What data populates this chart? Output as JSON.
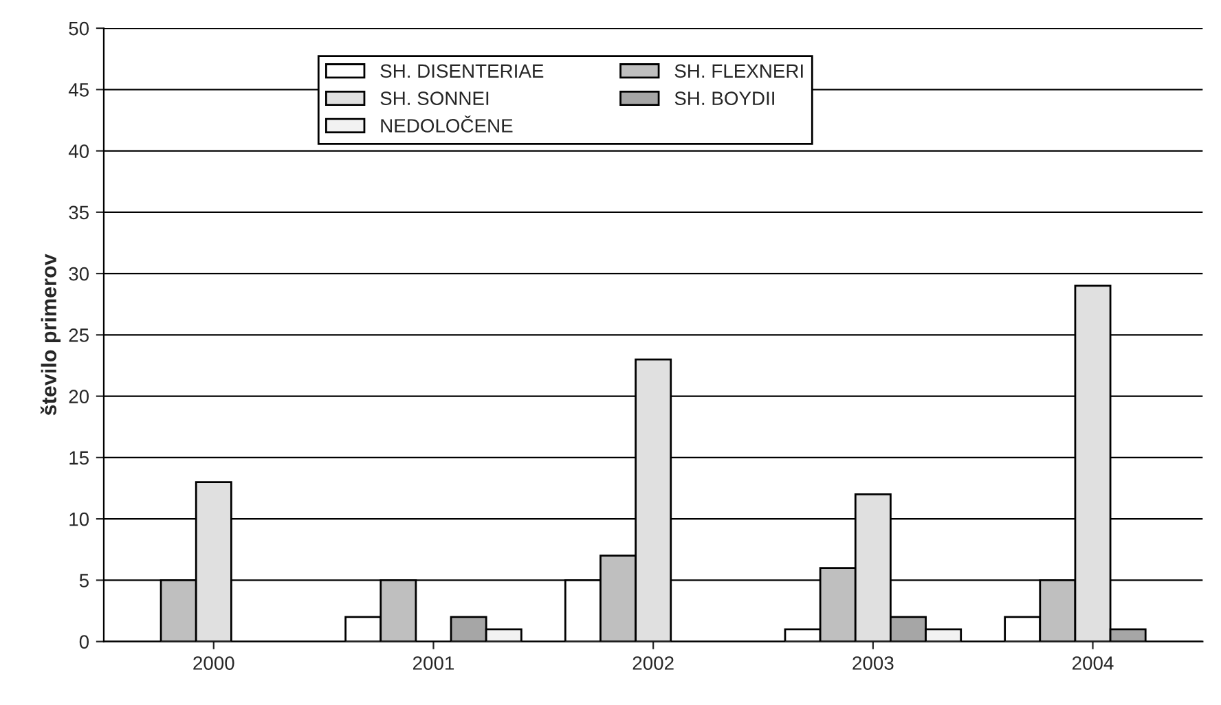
{
  "chart_data": {
    "type": "bar",
    "ylabel": "število primerov",
    "categories": [
      "2000",
      "2001",
      "2002",
      "2003",
      "2004"
    ],
    "series": [
      {
        "name": "SH. DISENTERIAE",
        "color": "#ffffff",
        "values": [
          0,
          2,
          5,
          1,
          2
        ]
      },
      {
        "name": "SH. FLEXNERI",
        "color": "#bfbfbf",
        "values": [
          5,
          5,
          7,
          6,
          5
        ]
      },
      {
        "name": "SH. SONNEI",
        "color": "#e0e0e0",
        "values": [
          13,
          null,
          23,
          12,
          29
        ]
      },
      {
        "name": "SH. BOYDII",
        "color": "#a6a6a6",
        "values": [
          0,
          2,
          0,
          2,
          1
        ]
      },
      {
        "name": "NEDOLOČENE",
        "color": "#f2f2f2",
        "values": [
          0,
          1,
          0,
          1,
          0
        ]
      }
    ],
    "ylim": [
      0,
      50
    ],
    "yticks": [
      0,
      5,
      10,
      15,
      20,
      25,
      30,
      35,
      40,
      45,
      50
    ],
    "grid": "y",
    "legend": "top"
  }
}
